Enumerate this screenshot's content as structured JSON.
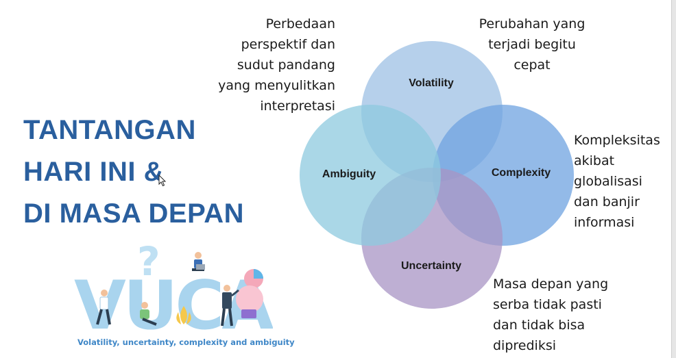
{
  "slide": {
    "title_lines": [
      "TANTANGAN",
      "HARI INI &",
      "DI MASA DEPAN"
    ]
  },
  "venn": {
    "circles": [
      {
        "label": "Volatility",
        "color": "#9ec0e4",
        "description_lines": [
          "Perubahan yang",
          "terjadi begitu",
          "cepat"
        ]
      },
      {
        "label": "Complexity",
        "color": "#6fa3e0",
        "description_lines": [
          "Kompleksitas",
          "akibat",
          "globalisasi",
          "dan banjir",
          "informasi"
        ]
      },
      {
        "label": "Uncertainty",
        "color": "#a894c4",
        "description_lines": [
          "Masa depan yang",
          "serba tidak pasti",
          "dan tidak bisa",
          "diprediksi"
        ]
      },
      {
        "label": "Ambiguity",
        "color": "#8ec9df",
        "description_lines": [
          "Perbedaan",
          "perspektif dan",
          "sudut pandang",
          "yang menyulitkan",
          "interpretasi"
        ]
      }
    ]
  },
  "illustration": {
    "letters": "VUCA",
    "caption": "Volatility, uncertainty, complexity and ambiguity"
  }
}
